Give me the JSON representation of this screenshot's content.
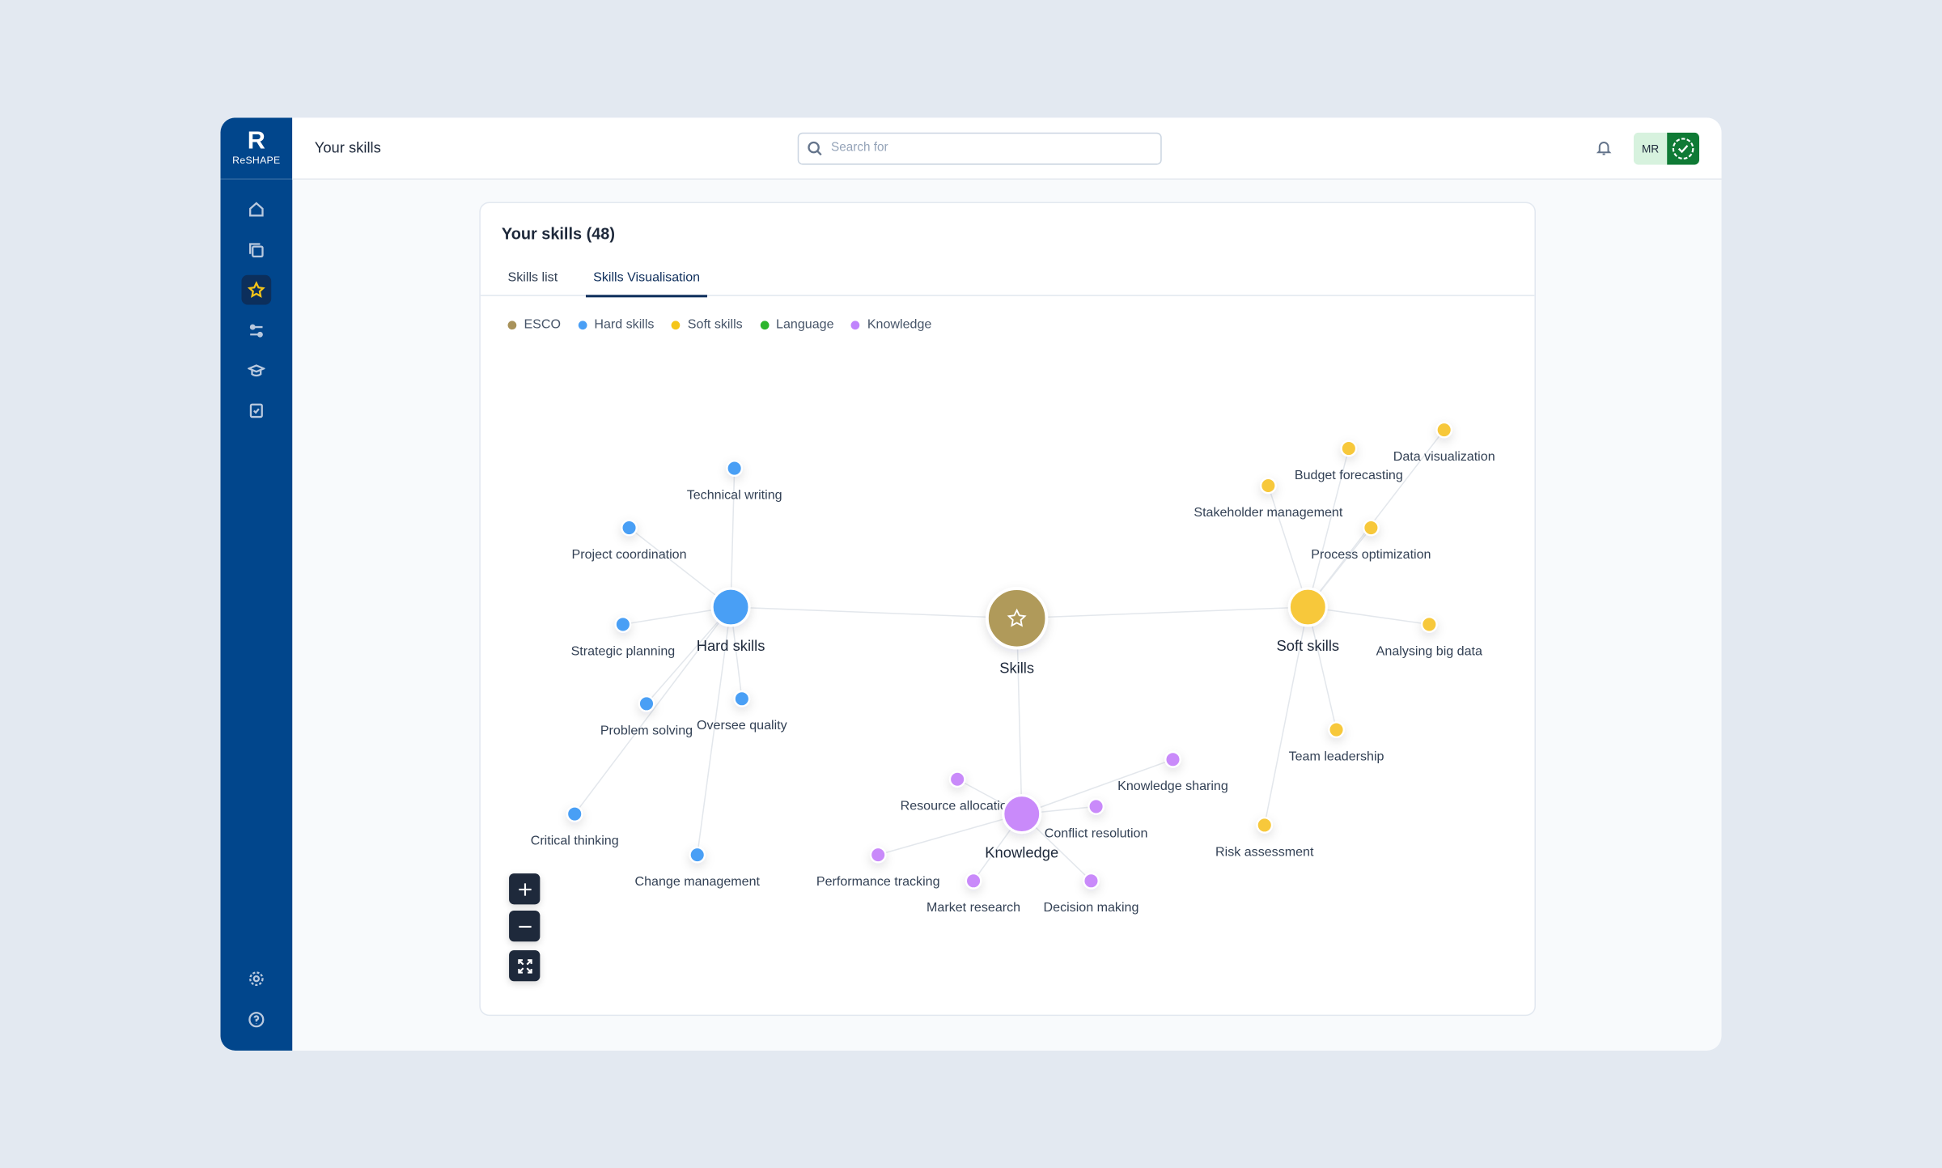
{
  "sidebar": {
    "logo": "ReSHAPE"
  },
  "header": {
    "title": "Your skills",
    "search_placeholder": "Search for",
    "avatar": "MR"
  },
  "card": {
    "title": "Your skills (48)",
    "tabs": [
      "Skills list",
      "Skills Visualisation"
    ],
    "active_tab": 1
  },
  "legend": [
    {
      "label": "ESCO",
      "color": "#a8925a"
    },
    {
      "label": "Hard skills",
      "color": "#4a9ff5"
    },
    {
      "label": "Soft skills",
      "color": "#f5c518"
    },
    {
      "label": "Language",
      "color": "#2db52d"
    },
    {
      "label": "Knowledge",
      "color": "#c084fc"
    }
  ],
  "graph": {
    "center": {
      "label": "Skills",
      "color": "#b09a5a"
    },
    "groups": [
      {
        "label": "Hard skills",
        "color": "#4a9ff5",
        "skills": [
          "Technical writing",
          "Project coordination",
          "Strategic planning",
          "Problem solving",
          "Oversee quality",
          "Critical thinking",
          "Change management"
        ]
      },
      {
        "label": "Soft skills",
        "color": "#f7c83a",
        "skills": [
          "Data visualization",
          "Budget forecasting",
          "Stakeholder management",
          "Process optimization",
          "Analysing big data",
          "Team leadership",
          "Risk assessment"
        ]
      },
      {
        "label": "Knowledge",
        "color": "#c98afa",
        "skills": [
          "Knowledge sharing",
          "Resource allocation",
          "Conflict resolution",
          "Performance tracking",
          "Market research",
          "Decision making"
        ]
      }
    ]
  }
}
